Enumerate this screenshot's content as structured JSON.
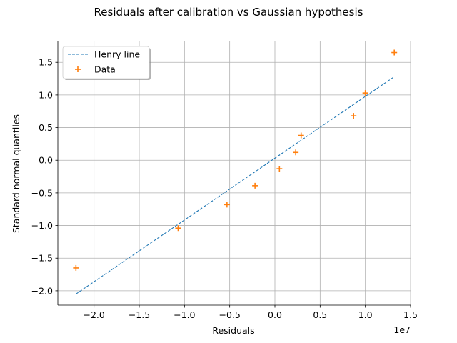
{
  "chart_data": {
    "type": "scatter",
    "title": "Residuals after calibration vs Gaussian hypothesis",
    "xlabel": "Residuals",
    "ylabel": "Standard normal quantiles",
    "x_offset_label": "1e7",
    "xlim": [
      -2.4,
      1.5
    ],
    "ylim": [
      -2.22,
      1.82
    ],
    "x_ticks": [
      -2.0,
      -1.5,
      -1.0,
      -0.5,
      0.0,
      0.5,
      1.0,
      1.5
    ],
    "x_tick_labels": [
      "−2.0",
      "−1.5",
      "−1.0",
      "−0.5",
      "0.0",
      "0.5",
      "1.0",
      "1.5"
    ],
    "y_ticks": [
      -2.0,
      -1.5,
      -1.0,
      -0.5,
      0.0,
      0.5,
      1.0,
      1.5
    ],
    "y_tick_labels": [
      "−2.0",
      "−1.5",
      "−1.0",
      "−0.5",
      "0.0",
      "0.5",
      "1.0",
      "1.5"
    ],
    "grid": true,
    "legend_position": "top-left",
    "series": [
      {
        "name": "Henry line",
        "kind": "line",
        "style": "dashed",
        "color": "#1f77b4",
        "x": [
          -2.2,
          1.32
        ],
        "y": [
          -2.05,
          1.28
        ]
      },
      {
        "name": "Data",
        "kind": "scatter",
        "marker": "plus",
        "color": "#ff7f0e",
        "x": [
          -2.2,
          -1.07,
          -0.53,
          -0.22,
          0.05,
          0.23,
          0.29,
          0.87,
          1.0,
          1.32
        ],
        "y": [
          -1.65,
          -1.04,
          -0.68,
          -0.39,
          -0.13,
          0.12,
          0.38,
          0.68,
          1.03,
          1.65
        ]
      }
    ]
  }
}
